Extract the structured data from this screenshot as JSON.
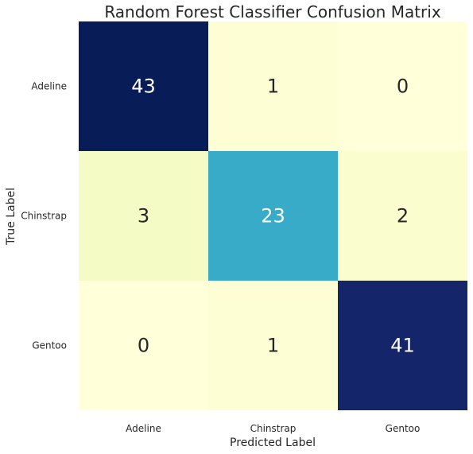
{
  "chart_data": {
    "type": "heatmap",
    "title": "Random Forest Classifier Confusion Matrix",
    "xlabel": "Predicted Label",
    "ylabel": "True Label",
    "x_categories": [
      "Adeline",
      "Chinstrap",
      "Gentoo"
    ],
    "y_categories": [
      "Adeline",
      "Chinstrap",
      "Gentoo"
    ],
    "values": [
      [
        43,
        1,
        0
      ],
      [
        3,
        23,
        2
      ],
      [
        0,
        1,
        41
      ]
    ],
    "colormap": "YlGnBu",
    "colorbar": false,
    "annotations": true
  },
  "colors": {
    "cell_colors": [
      [
        "#081d58",
        "#fdfed3",
        "#ffffd9"
      ],
      [
        "#f5fbc4",
        "#37abc7",
        "#fafdcd"
      ],
      [
        "#ffffd9",
        "#fdfed3",
        "#142669"
      ]
    ],
    "text_dark": "#262626",
    "text_light": "#ffffff"
  }
}
